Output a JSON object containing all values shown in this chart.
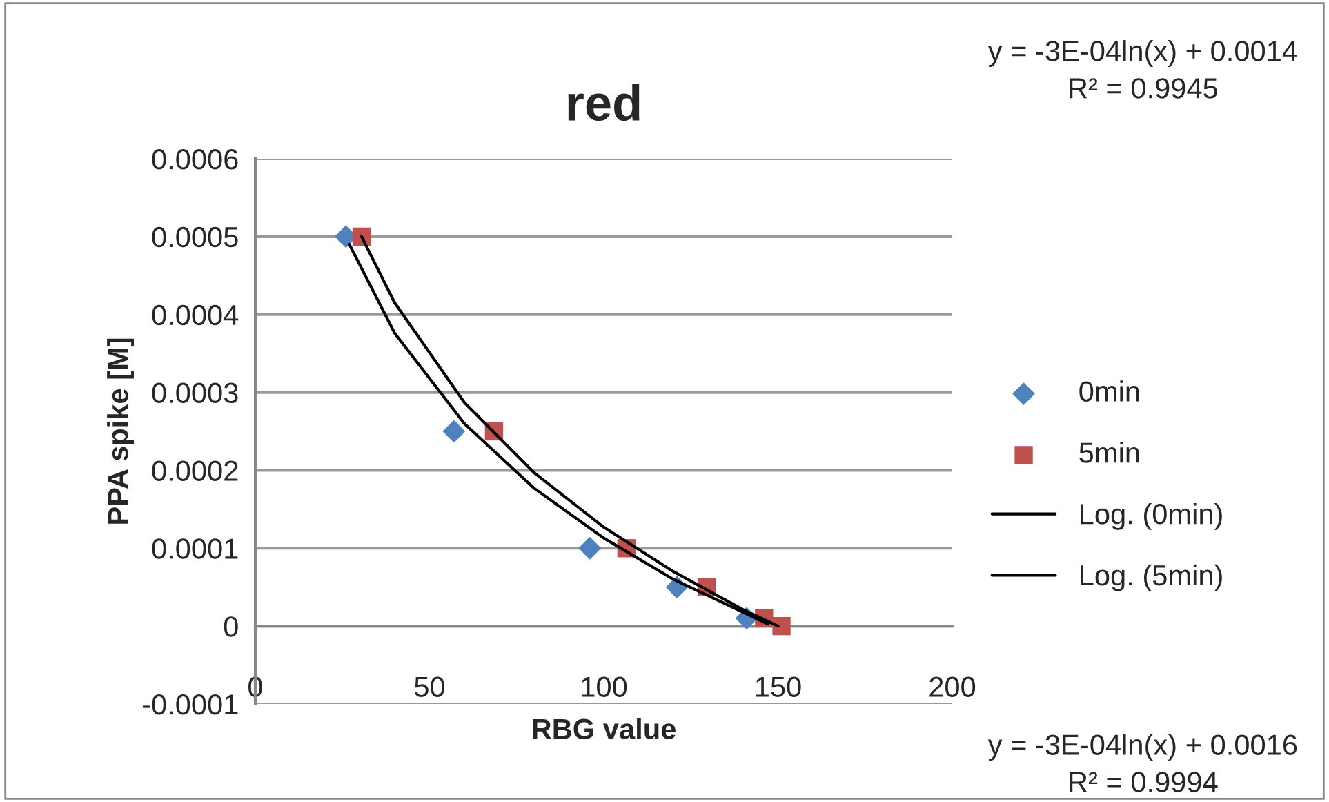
{
  "chart_data": {
    "type": "scatter",
    "title": "red",
    "xlabel": "RBG value",
    "ylabel": "PPA spike [M]",
    "xlim": [
      0,
      200
    ],
    "xticks": [
      0,
      50,
      100,
      150,
      200
    ],
    "ylim": [
      -0.0001,
      0.0006
    ],
    "yticks": [
      -0.0001,
      0,
      0.0001,
      0.0002,
      0.0003,
      0.0004,
      0.0005,
      0.0006
    ],
    "grid": "y",
    "legend": "right",
    "series": [
      {
        "name": "0min",
        "color": "#4f81bd",
        "marker": "diamond",
        "x": [
          26,
          57,
          96,
          121,
          141
        ],
        "values": [
          0.0005,
          0.00025,
          0.0001,
          5e-05,
          1e-05
        ]
      },
      {
        "name": "5min",
        "color": "#c0504d",
        "marker": "square",
        "x": [
          30.5,
          68.5,
          106.5,
          129.5,
          146,
          151
        ],
        "values": [
          0.0005,
          0.00025,
          0.0001,
          5e-05,
          1e-05,
          0
        ]
      },
      {
        "name": "Log. (0min)",
        "type": "line",
        "color": "#000000",
        "marker": "none",
        "x": [
          27,
          40,
          60,
          80,
          100,
          120,
          147
        ],
        "values": [
          0.00049,
          0.000376,
          0.00026,
          0.000177,
          0.000113,
          6e-05,
          3e-06
        ]
      },
      {
        "name": "Log. (5min)",
        "type": "line",
        "color": "#000000",
        "marker": "none",
        "x": [
          30.5,
          40,
          60,
          80,
          100,
          120,
          140,
          150
        ],
        "values": [
          0.0005,
          0.000415,
          0.000287,
          0.000197,
          0.000127,
          7e-05,
          2.1e-05,
          0
        ]
      }
    ],
    "annotations": [
      "y = -3E-04ln(x) + 0.0014\nR² = 0.9945",
      "y = -3E-04ln(x) + 0.0016\nR² = 0.9994"
    ]
  }
}
